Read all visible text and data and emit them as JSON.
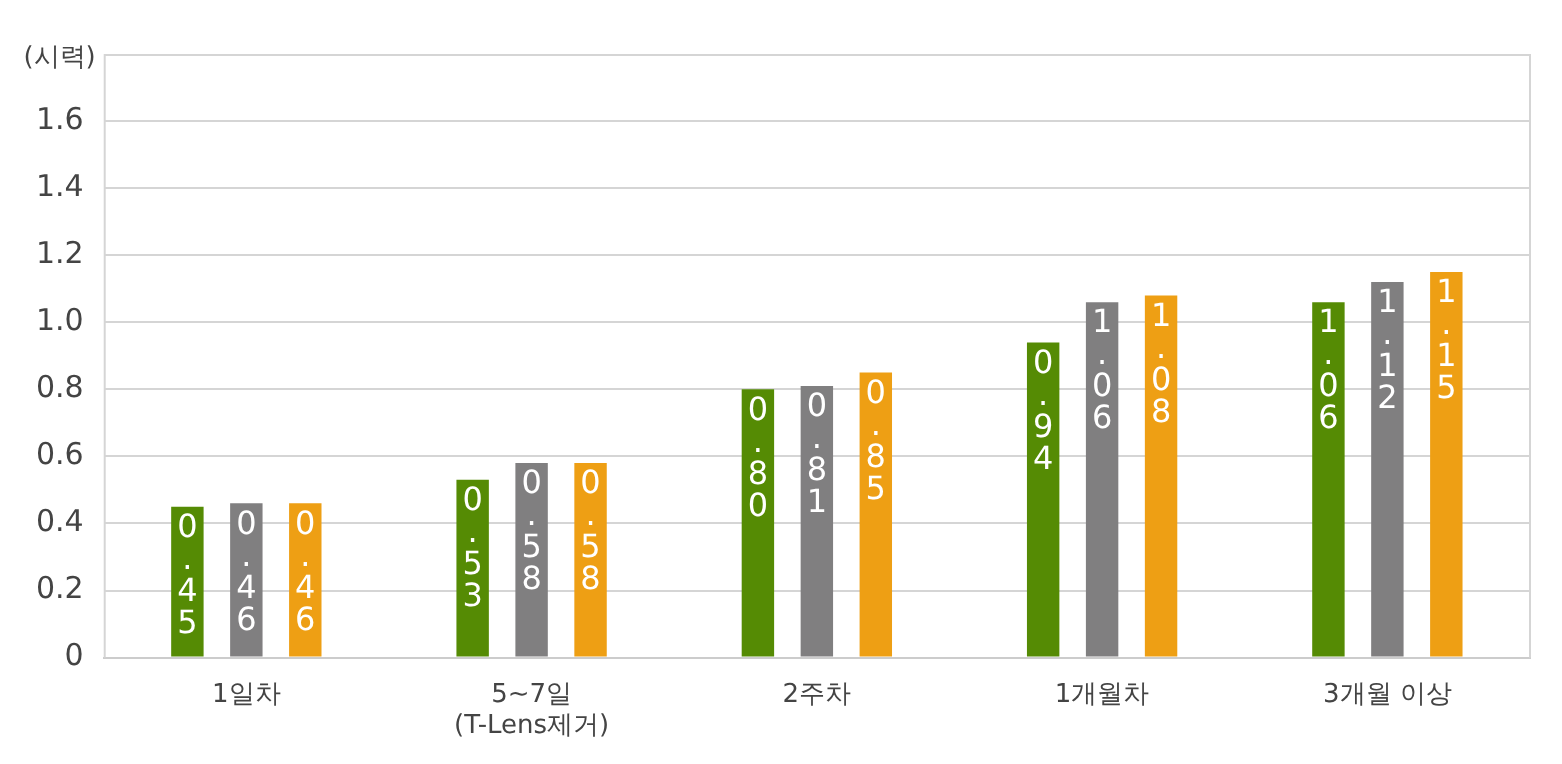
{
  "chart_data": {
    "type": "bar",
    "ylabel": "(시력)",
    "categories": [
      "1일차",
      "5~7일\n(T-Lens제거)",
      "2주차",
      "1개월차",
      "3개월 이상"
    ],
    "series": [
      {
        "color": "#558b04",
        "values": [
          0.45,
          0.53,
          0.8,
          0.94,
          1.06
        ],
        "value_labels": [
          "0.45",
          "0.53",
          "0.80",
          "0.94",
          "1.06"
        ]
      },
      {
        "color": "#807f80",
        "values": [
          0.46,
          0.58,
          0.81,
          1.06,
          1.12
        ],
        "value_labels": [
          "0.46",
          "0.58",
          "0.81",
          "1.06",
          "1.12"
        ]
      },
      {
        "color": "#ee9f14",
        "values": [
          0.46,
          0.58,
          0.85,
          1.08,
          1.15
        ],
        "value_labels": [
          "0.46",
          "0.58",
          "0.85",
          "1.08",
          "1.15"
        ]
      }
    ],
    "ylim": [
      0,
      1.8
    ],
    "yticks": [
      0,
      {
        "value": 0.2,
        "label": "0.2"
      },
      {
        "value": 0.4,
        "label": "0.4"
      },
      {
        "value": 0.6,
        "label": "0.6"
      },
      {
        "value": 0.8,
        "label": "0.8"
      },
      {
        "value": 1.0,
        "label": "1.0"
      },
      {
        "value": 1.2,
        "label": "1.2"
      },
      {
        "value": 1.4,
        "label": "1.4"
      },
      {
        "value": 1.6,
        "label": "1.6"
      }
    ],
    "grid": "y",
    "legend": false
  }
}
